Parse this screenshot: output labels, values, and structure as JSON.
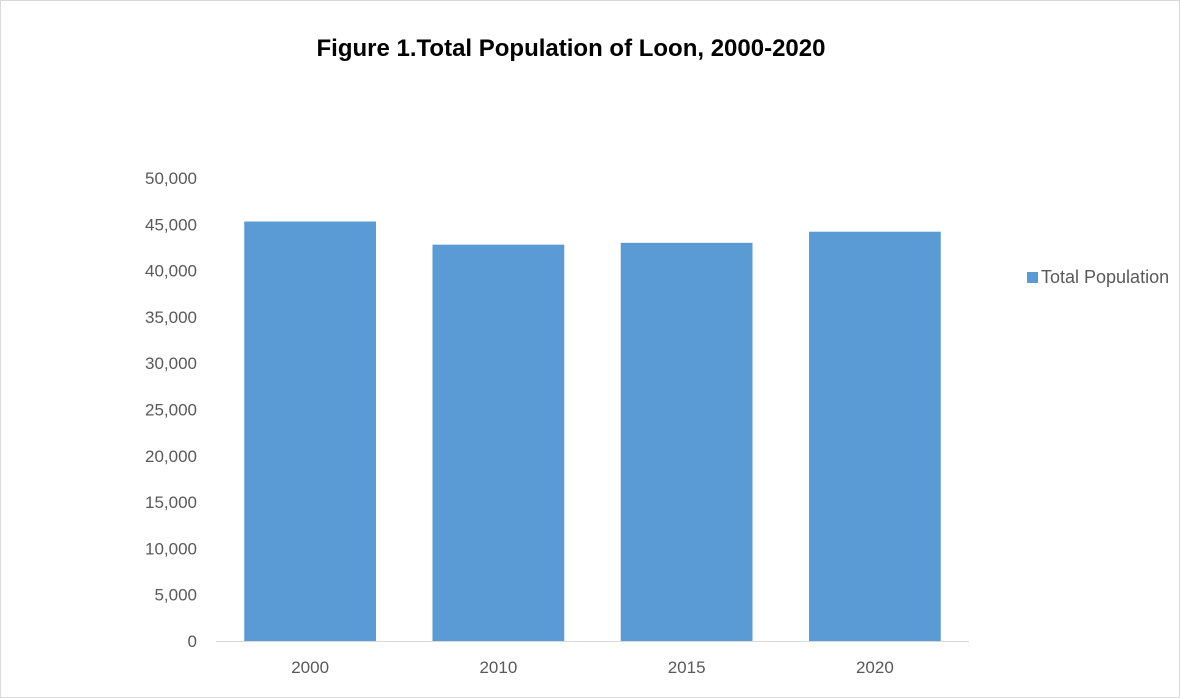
{
  "chart_data": {
    "type": "bar",
    "title": "Figure 1.Total Population of Loon, 2000-2020",
    "xlabel": "",
    "ylabel": "",
    "categories": [
      "2000",
      "2010",
      "2015",
      "2020"
    ],
    "series": [
      {
        "name": "Total Population",
        "values": [
          45300,
          42800,
          43000,
          44200
        ],
        "color": "#5b9bd5"
      }
    ],
    "ylim": [
      0,
      50000
    ],
    "yticks": [
      0,
      5000,
      10000,
      15000,
      20000,
      25000,
      30000,
      35000,
      40000,
      45000,
      50000
    ],
    "ytick_labels": [
      "0",
      "5,000",
      "10,000",
      "15,000",
      "20,000",
      "25,000",
      "30,000",
      "35,000",
      "40,000",
      "45,000",
      "50,000"
    ],
    "grid": false,
    "legend": {
      "placement": "right",
      "entries": [
        "Total Population"
      ]
    },
    "axis_color": "#d9d9d9",
    "tick_label_color": "#595959"
  }
}
